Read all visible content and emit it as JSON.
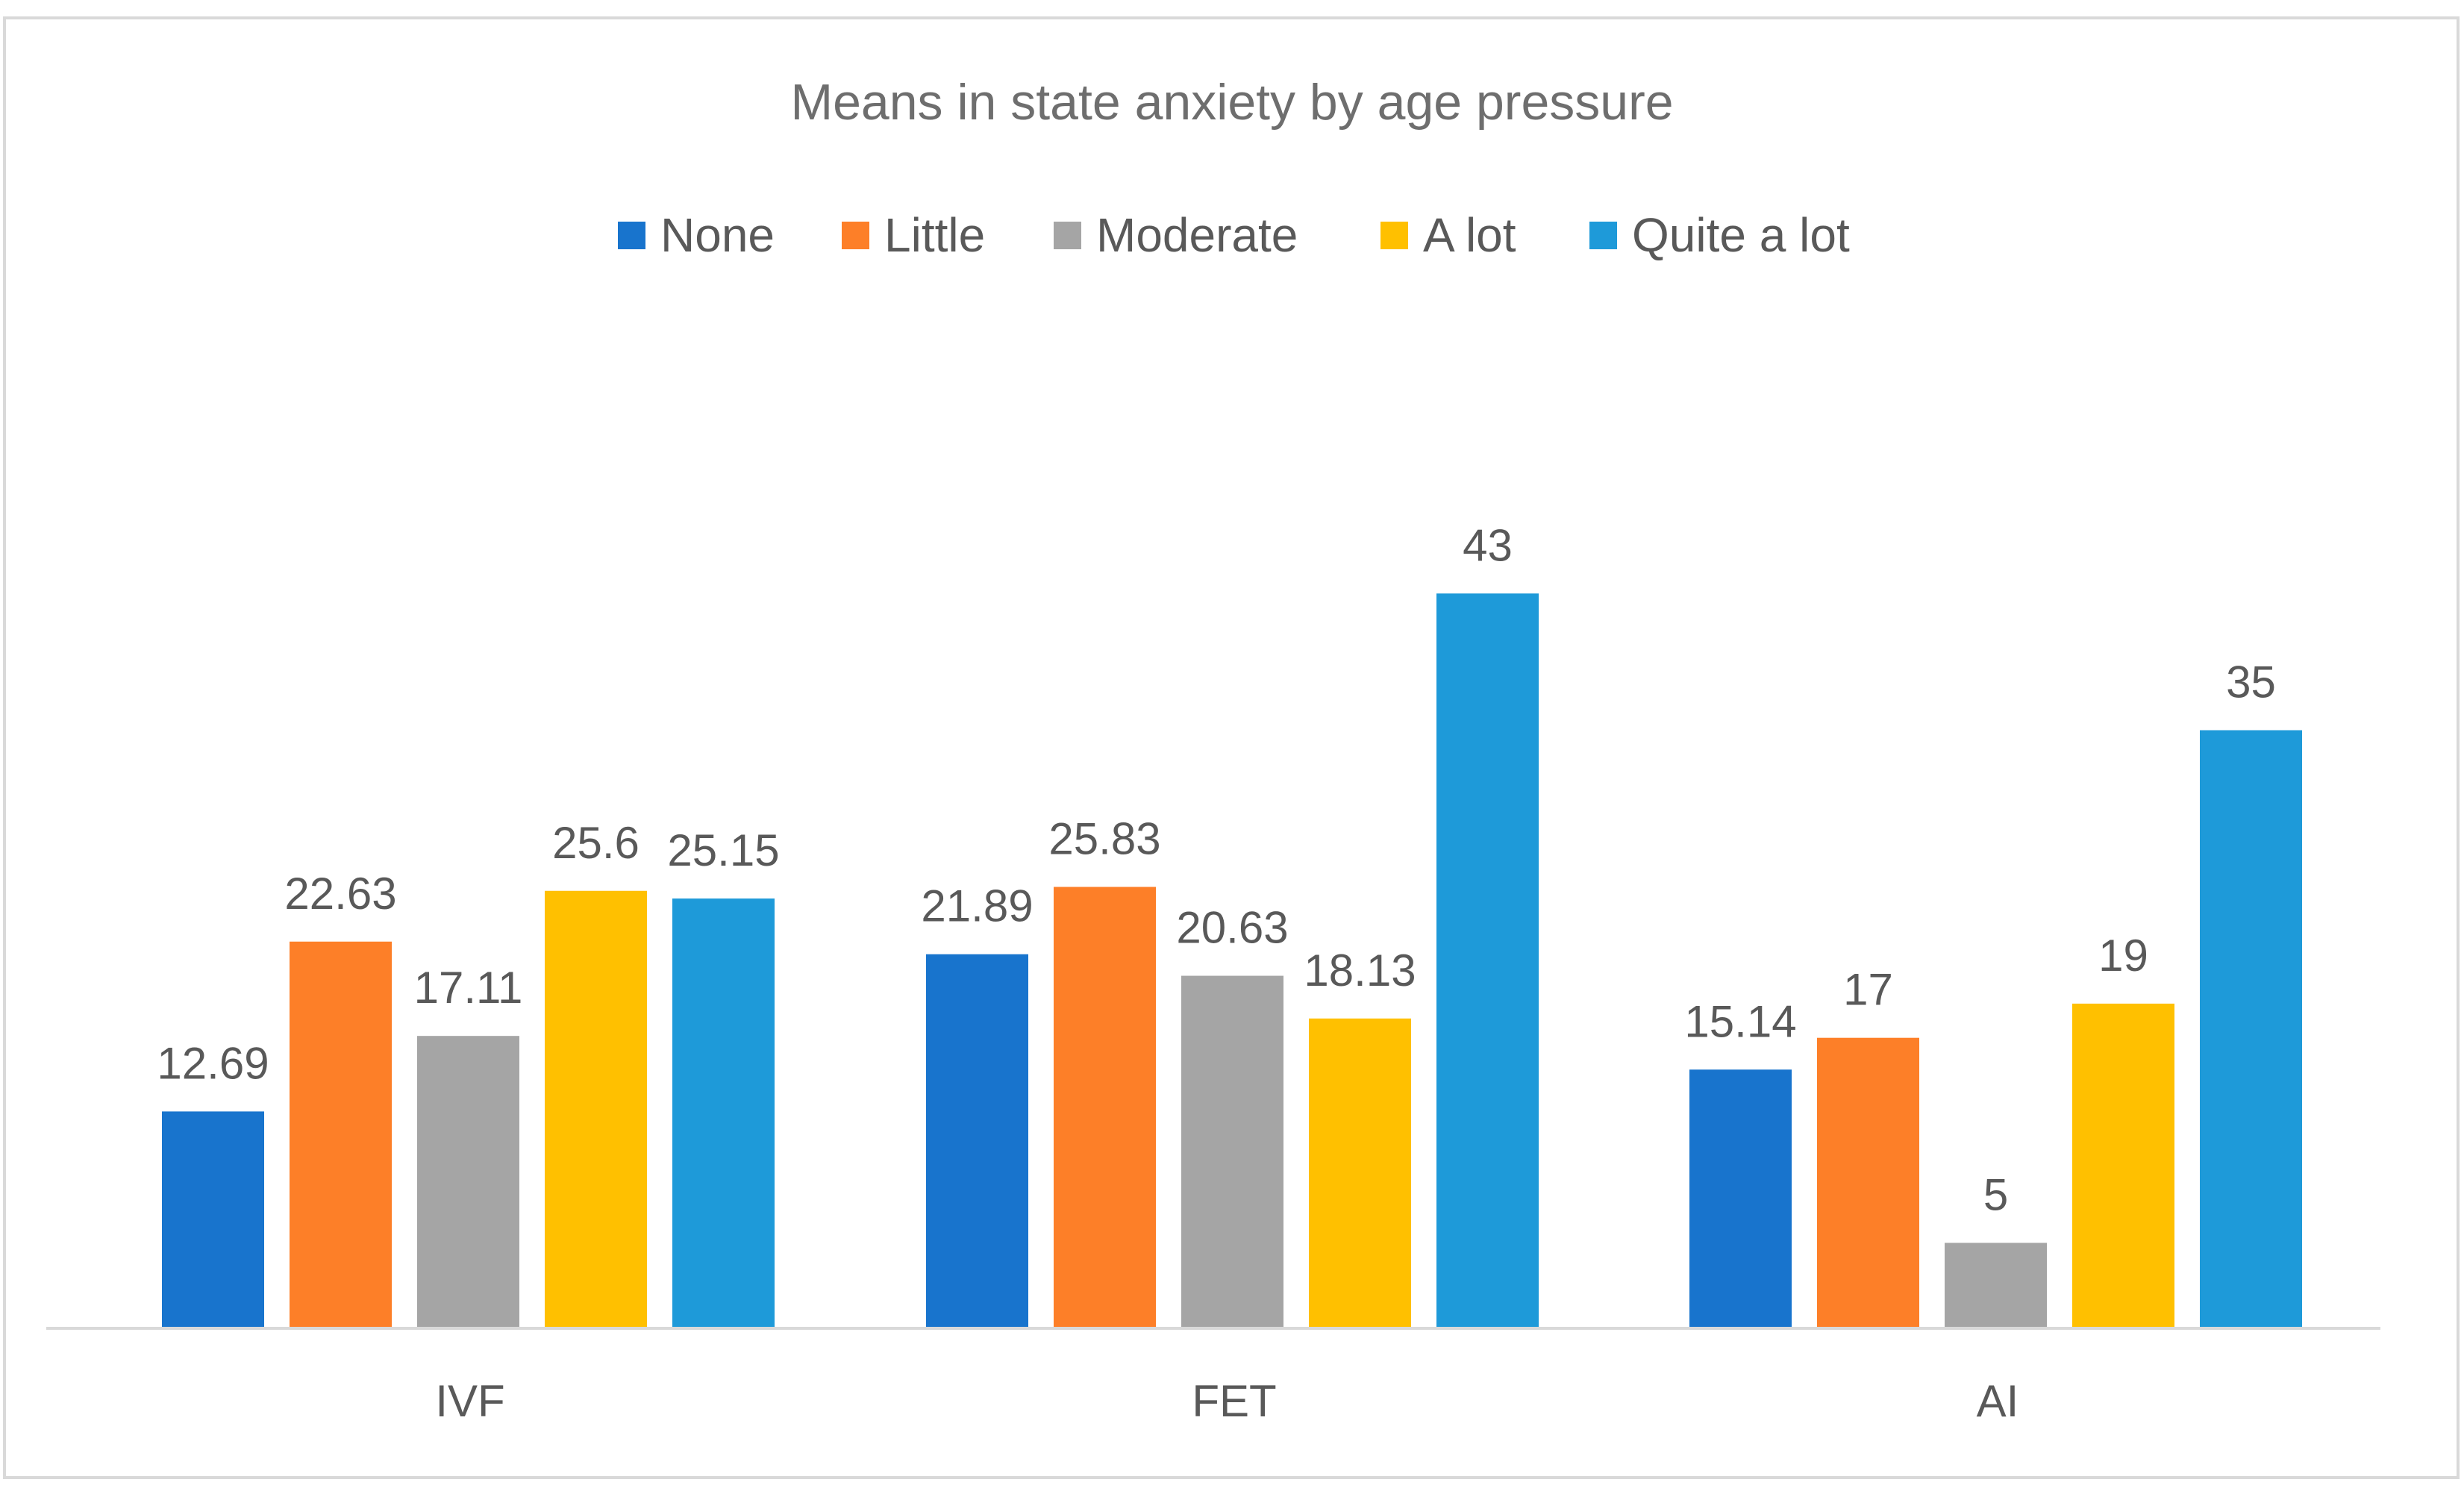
{
  "chart_data": {
    "type": "bar",
    "title": "Means in state anxiety by age pressure",
    "xlabel": "",
    "ylabel": "",
    "ylim": [
      0,
      50
    ],
    "grid": false,
    "legend_position": "top",
    "categories": [
      "IVF",
      "FET",
      "AI"
    ],
    "series": [
      {
        "name": "None",
        "color": "#1874cd",
        "values": [
          12.69,
          21.89,
          15.14
        ],
        "labels": [
          "12.69",
          "21.89",
          "15.14"
        ]
      },
      {
        "name": "Little",
        "color": "#fd7f28",
        "values": [
          22.63,
          25.83,
          17
        ],
        "labels": [
          "22.63",
          "25.83",
          "17"
        ]
      },
      {
        "name": "Moderate",
        "color": "#a5a5a5",
        "values": [
          17.11,
          20.63,
          5
        ],
        "labels": [
          "17.11",
          "20.63",
          "5"
        ]
      },
      {
        "name": "A lot",
        "color": "#ffc000",
        "values": [
          25.6,
          18.13,
          19
        ],
        "labels": [
          "25.6",
          "18.13",
          "19"
        ]
      },
      {
        "name": "Quite a lot",
        "color": "#1e9ad9",
        "values": [
          25.15,
          43,
          35
        ],
        "labels": [
          "25.15",
          "43",
          "35"
        ]
      }
    ]
  },
  "colors": {
    "text": "#595959",
    "title": "#6e6e6e",
    "axis": "#d9d9d9"
  }
}
